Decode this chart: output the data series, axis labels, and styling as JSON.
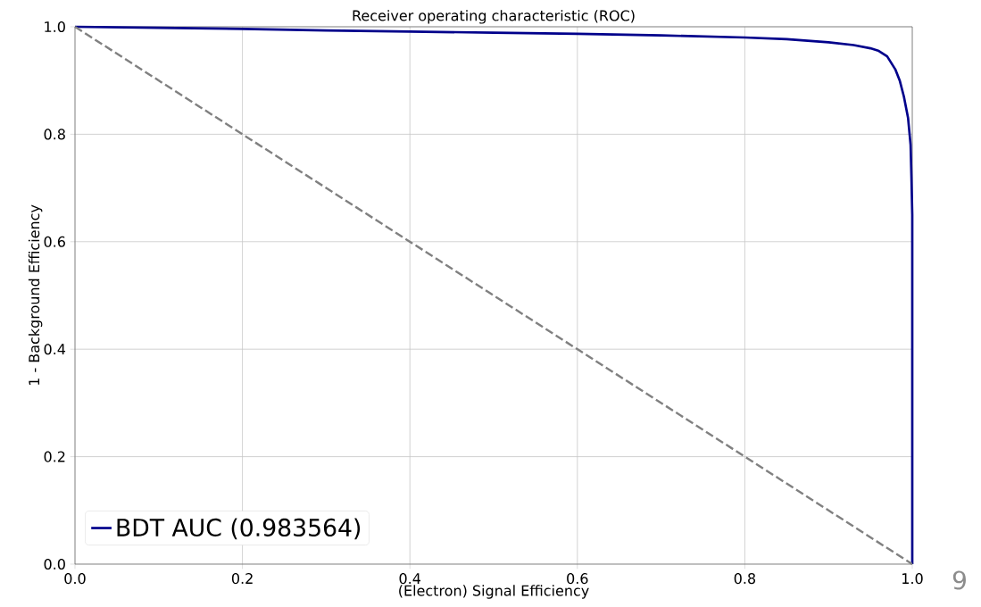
{
  "chart_data": {
    "type": "line",
    "title": "Receiver operating characteristic (ROC)",
    "xlabel": "(Electron) Signal Efficiency",
    "ylabel": "1 - Background Efficiency",
    "xlim": [
      0,
      1
    ],
    "ylim": [
      0,
      1
    ],
    "xticks": [
      {
        "value": 0,
        "label": "0.0"
      },
      {
        "value": 0.2,
        "label": "0.2"
      },
      {
        "value": 0.4,
        "label": "0.4"
      },
      {
        "value": 0.6,
        "label": "0.6"
      },
      {
        "value": 0.8,
        "label": "0.8"
      },
      {
        "value": 1,
        "label": "1.0"
      }
    ],
    "yticks": [
      {
        "value": 0,
        "label": "0.0"
      },
      {
        "value": 0.2,
        "label": "0.2"
      },
      {
        "value": 0.4,
        "label": "0.4"
      },
      {
        "value": 0.6,
        "label": "0.6"
      },
      {
        "value": 0.8,
        "label": "0.8"
      },
      {
        "value": 1,
        "label": "1.0"
      }
    ],
    "grid": true,
    "legend": "bottom left",
    "series": [
      {
        "name": "BDT AUC (0.983564)",
        "color": "#00008b",
        "line_style": "solid",
        "x": [
          0,
          0.1,
          0.2,
          0.3,
          0.4,
          0.5,
          0.6,
          0.7,
          0.8,
          0.85,
          0.9,
          0.93,
          0.95,
          0.96,
          0.97,
          0.98,
          0.985,
          0.99,
          0.995,
          0.998,
          0.999,
          1.0,
          1.0
        ],
        "values": [
          1,
          0.998,
          0.996,
          0.993,
          0.991,
          0.989,
          0.987,
          0.984,
          0.98,
          0.977,
          0.971,
          0.966,
          0.96,
          0.955,
          0.945,
          0.92,
          0.9,
          0.87,
          0.83,
          0.78,
          0.72,
          0.65,
          0
        ]
      },
      {
        "color": "#808080",
        "line_style": "dashed",
        "x": [
          0,
          1
        ],
        "values": [
          1,
          0
        ]
      }
    ],
    "annotations": [
      "9"
    ]
  }
}
